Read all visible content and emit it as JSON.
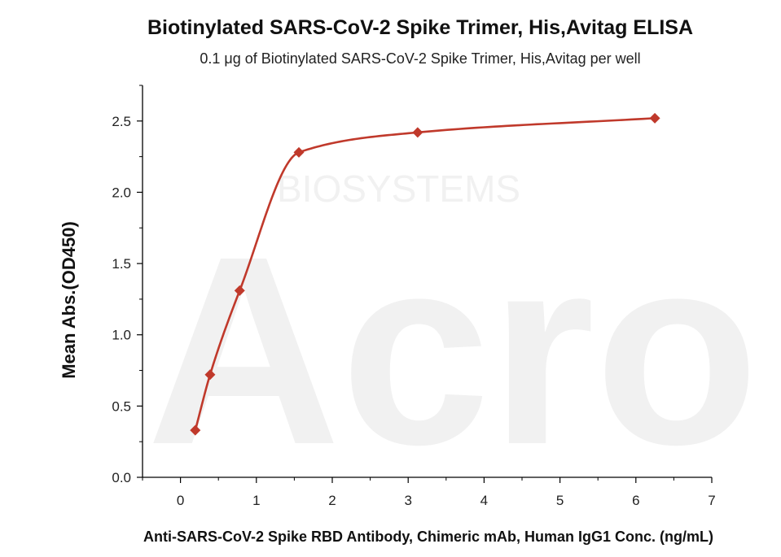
{
  "chart_data": {
    "type": "scatter",
    "title": "Biotinylated SARS-CoV-2 Spike Trimer, His,Avitag ELISA",
    "subtitle": "0.1 μg of Biotinylated SARS-CoV-2 Spike Trimer, His,Avitag per well",
    "xlabel": "Anti-SARS-CoV-2 Spike RBD Antibody, Chimeric mAb, Human IgG1 Conc. (ng/mL)",
    "ylabel": "Mean Abs.(OD450)",
    "xlim": [
      -0.5,
      7
    ],
    "ylim": [
      0,
      2.75
    ],
    "x_ticks": [
      0,
      1,
      2,
      3,
      4,
      5,
      6,
      7
    ],
    "y_ticks": [
      0.0,
      0.5,
      1.0,
      1.5,
      2.0,
      2.5
    ],
    "x_tick_labels": [
      "0",
      "1",
      "2",
      "3",
      "4",
      "5",
      "6",
      "7"
    ],
    "y_tick_labels": [
      "0.0",
      "0.5",
      "1.0",
      "1.5",
      "2.0",
      "2.5"
    ],
    "grid": false,
    "legend": "none",
    "series": [
      {
        "x": [
          0.195,
          0.39,
          0.78,
          1.56,
          3.125,
          6.25
        ],
        "y": [
          0.33,
          0.72,
          1.31,
          2.28,
          2.42,
          2.52
        ],
        "marker": "diamond",
        "color": "#c0392b",
        "fit_line": "4-parameter logistic"
      }
    ],
    "watermark": {
      "brand": "Acro",
      "text": "BIOSYSTEMS"
    }
  }
}
